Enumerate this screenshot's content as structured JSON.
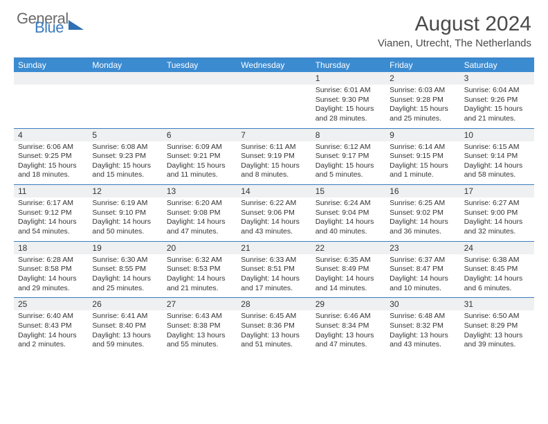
{
  "logo": {
    "text1": "General",
    "text2": "Blue"
  },
  "title": "August 2024",
  "location": "Vianen, Utrecht, The Netherlands",
  "colors": {
    "header_bg": "#3b8bd1",
    "border": "#3b7bbf",
    "dayhead_bg": "#eef0f1",
    "text": "#333333"
  },
  "weekdays": [
    "Sunday",
    "Monday",
    "Tuesday",
    "Wednesday",
    "Thursday",
    "Friday",
    "Saturday"
  ],
  "weeks": [
    [
      {
        "n": "",
        "sr": "",
        "ss": "",
        "dl": ""
      },
      {
        "n": "",
        "sr": "",
        "ss": "",
        "dl": ""
      },
      {
        "n": "",
        "sr": "",
        "ss": "",
        "dl": ""
      },
      {
        "n": "",
        "sr": "",
        "ss": "",
        "dl": ""
      },
      {
        "n": "1",
        "sr": "Sunrise: 6:01 AM",
        "ss": "Sunset: 9:30 PM",
        "dl": "Daylight: 15 hours and 28 minutes."
      },
      {
        "n": "2",
        "sr": "Sunrise: 6:03 AM",
        "ss": "Sunset: 9:28 PM",
        "dl": "Daylight: 15 hours and 25 minutes."
      },
      {
        "n": "3",
        "sr": "Sunrise: 6:04 AM",
        "ss": "Sunset: 9:26 PM",
        "dl": "Daylight: 15 hours and 21 minutes."
      }
    ],
    [
      {
        "n": "4",
        "sr": "Sunrise: 6:06 AM",
        "ss": "Sunset: 9:25 PM",
        "dl": "Daylight: 15 hours and 18 minutes."
      },
      {
        "n": "5",
        "sr": "Sunrise: 6:08 AM",
        "ss": "Sunset: 9:23 PM",
        "dl": "Daylight: 15 hours and 15 minutes."
      },
      {
        "n": "6",
        "sr": "Sunrise: 6:09 AM",
        "ss": "Sunset: 9:21 PM",
        "dl": "Daylight: 15 hours and 11 minutes."
      },
      {
        "n": "7",
        "sr": "Sunrise: 6:11 AM",
        "ss": "Sunset: 9:19 PM",
        "dl": "Daylight: 15 hours and 8 minutes."
      },
      {
        "n": "8",
        "sr": "Sunrise: 6:12 AM",
        "ss": "Sunset: 9:17 PM",
        "dl": "Daylight: 15 hours and 5 minutes."
      },
      {
        "n": "9",
        "sr": "Sunrise: 6:14 AM",
        "ss": "Sunset: 9:15 PM",
        "dl": "Daylight: 15 hours and 1 minute."
      },
      {
        "n": "10",
        "sr": "Sunrise: 6:15 AM",
        "ss": "Sunset: 9:14 PM",
        "dl": "Daylight: 14 hours and 58 minutes."
      }
    ],
    [
      {
        "n": "11",
        "sr": "Sunrise: 6:17 AM",
        "ss": "Sunset: 9:12 PM",
        "dl": "Daylight: 14 hours and 54 minutes."
      },
      {
        "n": "12",
        "sr": "Sunrise: 6:19 AM",
        "ss": "Sunset: 9:10 PM",
        "dl": "Daylight: 14 hours and 50 minutes."
      },
      {
        "n": "13",
        "sr": "Sunrise: 6:20 AM",
        "ss": "Sunset: 9:08 PM",
        "dl": "Daylight: 14 hours and 47 minutes."
      },
      {
        "n": "14",
        "sr": "Sunrise: 6:22 AM",
        "ss": "Sunset: 9:06 PM",
        "dl": "Daylight: 14 hours and 43 minutes."
      },
      {
        "n": "15",
        "sr": "Sunrise: 6:24 AM",
        "ss": "Sunset: 9:04 PM",
        "dl": "Daylight: 14 hours and 40 minutes."
      },
      {
        "n": "16",
        "sr": "Sunrise: 6:25 AM",
        "ss": "Sunset: 9:02 PM",
        "dl": "Daylight: 14 hours and 36 minutes."
      },
      {
        "n": "17",
        "sr": "Sunrise: 6:27 AM",
        "ss": "Sunset: 9:00 PM",
        "dl": "Daylight: 14 hours and 32 minutes."
      }
    ],
    [
      {
        "n": "18",
        "sr": "Sunrise: 6:28 AM",
        "ss": "Sunset: 8:58 PM",
        "dl": "Daylight: 14 hours and 29 minutes."
      },
      {
        "n": "19",
        "sr": "Sunrise: 6:30 AM",
        "ss": "Sunset: 8:55 PM",
        "dl": "Daylight: 14 hours and 25 minutes."
      },
      {
        "n": "20",
        "sr": "Sunrise: 6:32 AM",
        "ss": "Sunset: 8:53 PM",
        "dl": "Daylight: 14 hours and 21 minutes."
      },
      {
        "n": "21",
        "sr": "Sunrise: 6:33 AM",
        "ss": "Sunset: 8:51 PM",
        "dl": "Daylight: 14 hours and 17 minutes."
      },
      {
        "n": "22",
        "sr": "Sunrise: 6:35 AM",
        "ss": "Sunset: 8:49 PM",
        "dl": "Daylight: 14 hours and 14 minutes."
      },
      {
        "n": "23",
        "sr": "Sunrise: 6:37 AM",
        "ss": "Sunset: 8:47 PM",
        "dl": "Daylight: 14 hours and 10 minutes."
      },
      {
        "n": "24",
        "sr": "Sunrise: 6:38 AM",
        "ss": "Sunset: 8:45 PM",
        "dl": "Daylight: 14 hours and 6 minutes."
      }
    ],
    [
      {
        "n": "25",
        "sr": "Sunrise: 6:40 AM",
        "ss": "Sunset: 8:43 PM",
        "dl": "Daylight: 14 hours and 2 minutes."
      },
      {
        "n": "26",
        "sr": "Sunrise: 6:41 AM",
        "ss": "Sunset: 8:40 PM",
        "dl": "Daylight: 13 hours and 59 minutes."
      },
      {
        "n": "27",
        "sr": "Sunrise: 6:43 AM",
        "ss": "Sunset: 8:38 PM",
        "dl": "Daylight: 13 hours and 55 minutes."
      },
      {
        "n": "28",
        "sr": "Sunrise: 6:45 AM",
        "ss": "Sunset: 8:36 PM",
        "dl": "Daylight: 13 hours and 51 minutes."
      },
      {
        "n": "29",
        "sr": "Sunrise: 6:46 AM",
        "ss": "Sunset: 8:34 PM",
        "dl": "Daylight: 13 hours and 47 minutes."
      },
      {
        "n": "30",
        "sr": "Sunrise: 6:48 AM",
        "ss": "Sunset: 8:32 PM",
        "dl": "Daylight: 13 hours and 43 minutes."
      },
      {
        "n": "31",
        "sr": "Sunrise: 6:50 AM",
        "ss": "Sunset: 8:29 PM",
        "dl": "Daylight: 13 hours and 39 minutes."
      }
    ]
  ]
}
